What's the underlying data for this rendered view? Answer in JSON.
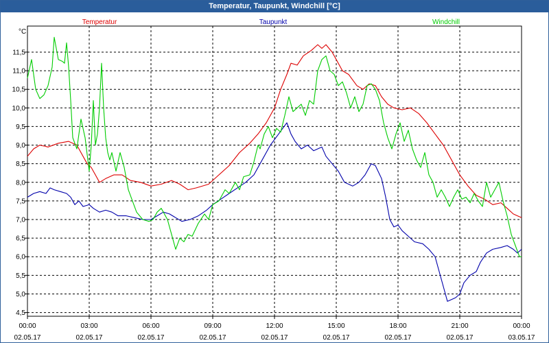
{
  "window": {
    "title": "Temperatur, Taupunkt, Windchill [°C]"
  },
  "chart_data": {
    "type": "line",
    "title": "Temperatur, Taupunkt, Windchill [°C]",
    "ylabel": "°C",
    "ylim": [
      4.4,
      12.2
    ],
    "yticks": [
      4.5,
      5.0,
      5.5,
      6.0,
      6.5,
      7.0,
      7.5,
      8.0,
      8.5,
      9.0,
      9.5,
      10.0,
      10.5,
      11.0,
      11.5
    ],
    "ytick_labels": [
      "4,5",
      "5,0",
      "5,5",
      "6,0",
      "6,5",
      "7,0",
      "7,5",
      "8,0",
      "8,5",
      "9,0",
      "9,5",
      "10,0",
      "10,5",
      "11,0",
      "11,5"
    ],
    "xlim": [
      0,
      24
    ],
    "xticks": [
      0,
      3,
      6,
      9,
      12,
      15,
      18,
      21,
      24
    ],
    "xtick_labels": [
      [
        "00:00",
        "02.05.17"
      ],
      [
        "03:00",
        "02.05.17"
      ],
      [
        "06:00",
        "02.05.17"
      ],
      [
        "09:00",
        "02.05.17"
      ],
      [
        "12:00",
        "02.05.17"
      ],
      [
        "15:00",
        "02.05.17"
      ],
      [
        "18:00",
        "02.05.17"
      ],
      [
        "21:00",
        "02.05.17"
      ],
      [
        "00:00",
        "03.05.17"
      ]
    ],
    "grid": true,
    "legend_position": "top",
    "series": [
      {
        "name": "Temperatur",
        "color": "#dd0000",
        "points": [
          [
            0,
            8.7
          ],
          [
            0.3,
            8.9
          ],
          [
            0.6,
            9.0
          ],
          [
            1.0,
            8.95
          ],
          [
            1.5,
            9.05
          ],
          [
            2.0,
            9.1
          ],
          [
            2.4,
            9.0
          ],
          [
            2.7,
            8.7
          ],
          [
            2.9,
            8.5
          ],
          [
            3.1,
            8.4
          ],
          [
            3.3,
            8.2
          ],
          [
            3.5,
            8.0
          ],
          [
            3.8,
            8.1
          ],
          [
            4.2,
            8.2
          ],
          [
            4.6,
            8.2
          ],
          [
            5.0,
            8.05
          ],
          [
            5.5,
            8.0
          ],
          [
            6.0,
            7.9
          ],
          [
            6.5,
            7.95
          ],
          [
            7.0,
            8.05
          ],
          [
            7.4,
            7.95
          ],
          [
            7.8,
            7.8
          ],
          [
            8.2,
            7.85
          ],
          [
            8.8,
            7.95
          ],
          [
            9.3,
            8.2
          ],
          [
            9.8,
            8.45
          ],
          [
            10.3,
            8.8
          ],
          [
            10.8,
            9.05
          ],
          [
            11.2,
            9.3
          ],
          [
            11.6,
            9.6
          ],
          [
            12.0,
            10.0
          ],
          [
            12.3,
            10.5
          ],
          [
            12.6,
            10.9
          ],
          [
            12.8,
            11.2
          ],
          [
            13.1,
            11.15
          ],
          [
            13.4,
            11.4
          ],
          [
            13.8,
            11.55
          ],
          [
            14.1,
            11.7
          ],
          [
            14.3,
            11.6
          ],
          [
            14.5,
            11.7
          ],
          [
            14.8,
            11.5
          ],
          [
            15.0,
            11.3
          ],
          [
            15.3,
            11.0
          ],
          [
            15.6,
            10.9
          ],
          [
            16.0,
            10.6
          ],
          [
            16.3,
            10.5
          ],
          [
            16.6,
            10.65
          ],
          [
            16.9,
            10.6
          ],
          [
            17.2,
            10.3
          ],
          [
            17.5,
            10.1
          ],
          [
            17.8,
            10.0
          ],
          [
            18.2,
            9.95
          ],
          [
            18.6,
            10.0
          ],
          [
            19.0,
            9.85
          ],
          [
            19.4,
            9.6
          ],
          [
            19.8,
            9.3
          ],
          [
            20.2,
            9.0
          ],
          [
            20.6,
            8.6
          ],
          [
            21.0,
            8.2
          ],
          [
            21.4,
            7.9
          ],
          [
            21.8,
            7.65
          ],
          [
            22.2,
            7.55
          ],
          [
            22.6,
            7.4
          ],
          [
            23.0,
            7.45
          ],
          [
            23.3,
            7.3
          ],
          [
            23.6,
            7.15
          ],
          [
            23.8,
            7.1
          ],
          [
            24.0,
            7.05
          ]
        ]
      },
      {
        "name": "Taupunkt",
        "color": "#0000aa",
        "points": [
          [
            0,
            7.6
          ],
          [
            0.3,
            7.7
          ],
          [
            0.6,
            7.75
          ],
          [
            0.9,
            7.7
          ],
          [
            1.1,
            7.85
          ],
          [
            1.3,
            7.8
          ],
          [
            1.6,
            7.75
          ],
          [
            1.9,
            7.7
          ],
          [
            2.1,
            7.6
          ],
          [
            2.3,
            7.4
          ],
          [
            2.5,
            7.5
          ],
          [
            2.7,
            7.35
          ],
          [
            3.0,
            7.4
          ],
          [
            3.2,
            7.3
          ],
          [
            3.5,
            7.2
          ],
          [
            3.8,
            7.25
          ],
          [
            4.1,
            7.2
          ],
          [
            4.4,
            7.1
          ],
          [
            4.8,
            7.1
          ],
          [
            5.2,
            7.05
          ],
          [
            5.6,
            7.0
          ],
          [
            6.0,
            7.0
          ],
          [
            6.3,
            7.1
          ],
          [
            6.6,
            7.2
          ],
          [
            6.9,
            7.15
          ],
          [
            7.2,
            7.05
          ],
          [
            7.5,
            6.95
          ],
          [
            7.9,
            7.0
          ],
          [
            8.3,
            7.1
          ],
          [
            8.7,
            7.25
          ],
          [
            9.0,
            7.4
          ],
          [
            9.4,
            7.55
          ],
          [
            9.8,
            7.7
          ],
          [
            10.2,
            7.85
          ],
          [
            10.6,
            8.0
          ],
          [
            11.0,
            8.2
          ],
          [
            11.4,
            8.6
          ],
          [
            11.8,
            9.0
          ],
          [
            12.0,
            9.15
          ],
          [
            12.2,
            9.3
          ],
          [
            12.4,
            9.45
          ],
          [
            12.6,
            9.6
          ],
          [
            12.8,
            9.3
          ],
          [
            13.0,
            9.1
          ],
          [
            13.3,
            8.9
          ],
          [
            13.6,
            9.0
          ],
          [
            13.9,
            8.85
          ],
          [
            14.1,
            8.9
          ],
          [
            14.3,
            8.95
          ],
          [
            14.5,
            8.7
          ],
          [
            14.8,
            8.5
          ],
          [
            15.1,
            8.3
          ],
          [
            15.4,
            8.0
          ],
          [
            15.8,
            7.9
          ],
          [
            16.1,
            8.0
          ],
          [
            16.4,
            8.2
          ],
          [
            16.7,
            8.5
          ],
          [
            16.9,
            8.45
          ],
          [
            17.2,
            8.1
          ],
          [
            17.4,
            7.6
          ],
          [
            17.6,
            7.0
          ],
          [
            17.8,
            6.8
          ],
          [
            18.0,
            6.85
          ],
          [
            18.2,
            6.7
          ],
          [
            18.5,
            6.55
          ],
          [
            18.8,
            6.4
          ],
          [
            19.2,
            6.35
          ],
          [
            19.5,
            6.2
          ],
          [
            19.8,
            6.0
          ],
          [
            20.0,
            5.6
          ],
          [
            20.2,
            5.2
          ],
          [
            20.4,
            4.8
          ],
          [
            20.6,
            4.85
          ],
          [
            20.8,
            4.9
          ],
          [
            21.0,
            5.0
          ],
          [
            21.2,
            5.3
          ],
          [
            21.5,
            5.5
          ],
          [
            21.8,
            5.6
          ],
          [
            22.0,
            5.85
          ],
          [
            22.3,
            6.1
          ],
          [
            22.6,
            6.2
          ],
          [
            23.0,
            6.25
          ],
          [
            23.3,
            6.3
          ],
          [
            23.6,
            6.2
          ],
          [
            23.8,
            6.1
          ],
          [
            24.0,
            6.2
          ]
        ]
      },
      {
        "name": "Windchill",
        "color": "#00cc00",
        "points": [
          [
            0,
            10.8
          ],
          [
            0.2,
            11.3
          ],
          [
            0.4,
            10.5
          ],
          [
            0.6,
            10.25
          ],
          [
            0.8,
            10.35
          ],
          [
            1.0,
            10.6
          ],
          [
            1.2,
            11.1
          ],
          [
            1.3,
            11.9
          ],
          [
            1.5,
            11.3
          ],
          [
            1.7,
            11.25
          ],
          [
            1.8,
            11.2
          ],
          [
            1.9,
            11.75
          ],
          [
            2.0,
            11.1
          ],
          [
            2.1,
            10.2
          ],
          [
            2.2,
            9.2
          ],
          [
            2.4,
            8.9
          ],
          [
            2.5,
            9.3
          ],
          [
            2.6,
            9.7
          ],
          [
            2.8,
            9.2
          ],
          [
            2.9,
            8.75
          ],
          [
            3.0,
            8.3
          ],
          [
            3.1,
            9.0
          ],
          [
            3.2,
            10.2
          ],
          [
            3.3,
            9.0
          ],
          [
            3.4,
            9.3
          ],
          [
            3.5,
            10.0
          ],
          [
            3.6,
            11.2
          ],
          [
            3.7,
            10.0
          ],
          [
            3.8,
            9.2
          ],
          [
            3.9,
            8.8
          ],
          [
            4.0,
            8.6
          ],
          [
            4.1,
            8.8
          ],
          [
            4.3,
            8.3
          ],
          [
            4.5,
            8.8
          ],
          [
            4.7,
            8.4
          ],
          [
            4.9,
            7.8
          ],
          [
            5.1,
            7.5
          ],
          [
            5.3,
            7.2
          ],
          [
            5.6,
            7.0
          ],
          [
            5.9,
            6.95
          ],
          [
            6.1,
            7.0
          ],
          [
            6.3,
            7.2
          ],
          [
            6.5,
            7.3
          ],
          [
            6.8,
            7.0
          ],
          [
            7.0,
            6.6
          ],
          [
            7.2,
            6.2
          ],
          [
            7.4,
            6.5
          ],
          [
            7.6,
            6.4
          ],
          [
            7.8,
            6.6
          ],
          [
            8.0,
            6.55
          ],
          [
            8.3,
            6.9
          ],
          [
            8.6,
            7.15
          ],
          [
            8.8,
            7.0
          ],
          [
            9.0,
            7.4
          ],
          [
            9.3,
            7.5
          ],
          [
            9.6,
            7.8
          ],
          [
            9.8,
            7.7
          ],
          [
            10.1,
            8.0
          ],
          [
            10.3,
            7.8
          ],
          [
            10.5,
            8.15
          ],
          [
            10.8,
            8.2
          ],
          [
            11.0,
            8.55
          ],
          [
            11.2,
            9.0
          ],
          [
            11.3,
            8.9
          ],
          [
            11.5,
            9.3
          ],
          [
            11.7,
            9.5
          ],
          [
            11.9,
            9.2
          ],
          [
            12.1,
            9.45
          ],
          [
            12.3,
            9.35
          ],
          [
            12.5,
            9.8
          ],
          [
            12.7,
            10.3
          ],
          [
            12.9,
            9.9
          ],
          [
            13.1,
            10.0
          ],
          [
            13.3,
            10.1
          ],
          [
            13.5,
            9.8
          ],
          [
            13.7,
            10.2
          ],
          [
            13.9,
            10.1
          ],
          [
            14.1,
            11.0
          ],
          [
            14.3,
            11.3
          ],
          [
            14.5,
            11.4
          ],
          [
            14.7,
            11.0
          ],
          [
            14.9,
            10.9
          ],
          [
            15.1,
            10.6
          ],
          [
            15.3,
            10.7
          ],
          [
            15.5,
            10.4
          ],
          [
            15.7,
            10.0
          ],
          [
            15.9,
            10.3
          ],
          [
            16.1,
            9.9
          ],
          [
            16.3,
            10.1
          ],
          [
            16.5,
            10.6
          ],
          [
            16.7,
            10.65
          ],
          [
            16.9,
            10.5
          ],
          [
            17.1,
            10.2
          ],
          [
            17.3,
            9.6
          ],
          [
            17.5,
            9.2
          ],
          [
            17.7,
            8.9
          ],
          [
            17.9,
            9.3
          ],
          [
            18.1,
            9.6
          ],
          [
            18.3,
            9.1
          ],
          [
            18.5,
            9.4
          ],
          [
            18.7,
            8.9
          ],
          [
            18.9,
            8.6
          ],
          [
            19.1,
            8.4
          ],
          [
            19.3,
            8.8
          ],
          [
            19.5,
            8.2
          ],
          [
            19.7,
            8.0
          ],
          [
            19.9,
            7.6
          ],
          [
            20.1,
            7.8
          ],
          [
            20.3,
            7.6
          ],
          [
            20.5,
            7.35
          ],
          [
            20.7,
            7.6
          ],
          [
            20.9,
            7.8
          ],
          [
            21.1,
            7.55
          ],
          [
            21.3,
            7.6
          ],
          [
            21.5,
            7.45
          ],
          [
            21.7,
            7.7
          ],
          [
            21.9,
            7.5
          ],
          [
            22.1,
            7.35
          ],
          [
            22.3,
            8.0
          ],
          [
            22.5,
            7.6
          ],
          [
            22.7,
            7.8
          ],
          [
            22.9,
            8.0
          ],
          [
            23.1,
            7.5
          ],
          [
            23.3,
            7.1
          ],
          [
            23.5,
            6.6
          ],
          [
            23.7,
            6.3
          ],
          [
            23.9,
            6.0
          ],
          [
            24.0,
            6.0
          ]
        ]
      }
    ]
  }
}
